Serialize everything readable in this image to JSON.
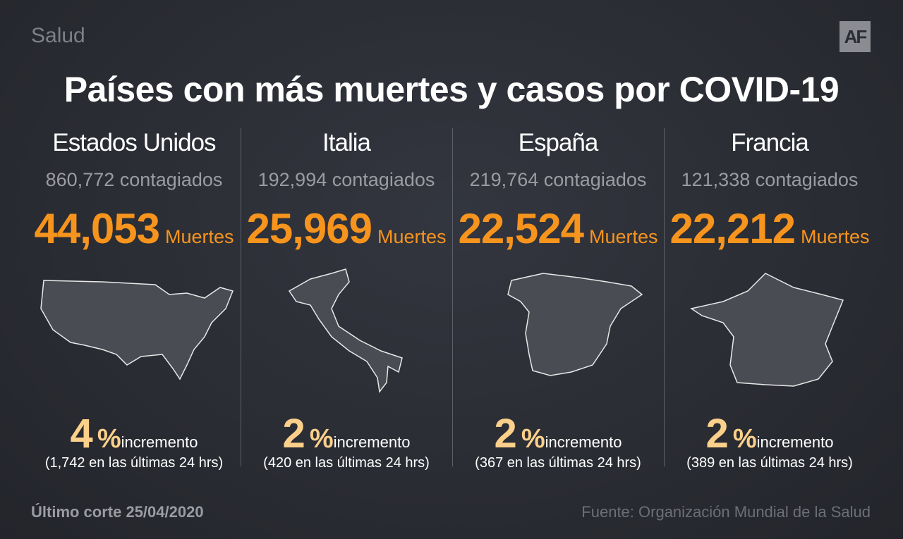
{
  "header": {
    "section": "Salud",
    "logo": "AF",
    "title": "Países con más muertes y casos por COVID-19"
  },
  "countries": [
    {
      "name": "Estados Unidos",
      "cases": "860,772",
      "cases_label": "contagiados",
      "deaths": "44,053",
      "deaths_label": "Muertes",
      "increase": "4",
      "increase_unit": "%",
      "increase_label": "incremento",
      "detail": "(1,742 en las últimas 24 hrs)"
    },
    {
      "name": "Italia",
      "cases": "192,994",
      "cases_label": "contagiados",
      "deaths": "25,969",
      "deaths_label": "Muertes",
      "increase": "2",
      "increase_unit": "%",
      "increase_label": "incremento",
      "detail": "(420 en las últimas 24 hrs)"
    },
    {
      "name": "España",
      "cases": "219,764",
      "cases_label": "contagiados",
      "deaths": "22,524",
      "deaths_label": "Muertes",
      "increase": "2",
      "increase_unit": "%",
      "increase_label": "incremento",
      "detail": "(367 en las últimas 24 hrs)"
    },
    {
      "name": "Francia",
      "cases": "121,338",
      "cases_label": "contagiados",
      "deaths": "22,212",
      "deaths_label": "Muertes",
      "increase": "2",
      "increase_unit": "%",
      "increase_label": "incremento",
      "detail": "(389 en las últimas 24 hrs)"
    }
  ],
  "footer": {
    "date": "Último corte 25/04/2020",
    "source": "Fuente: Organización Mundial de la Salud"
  }
}
